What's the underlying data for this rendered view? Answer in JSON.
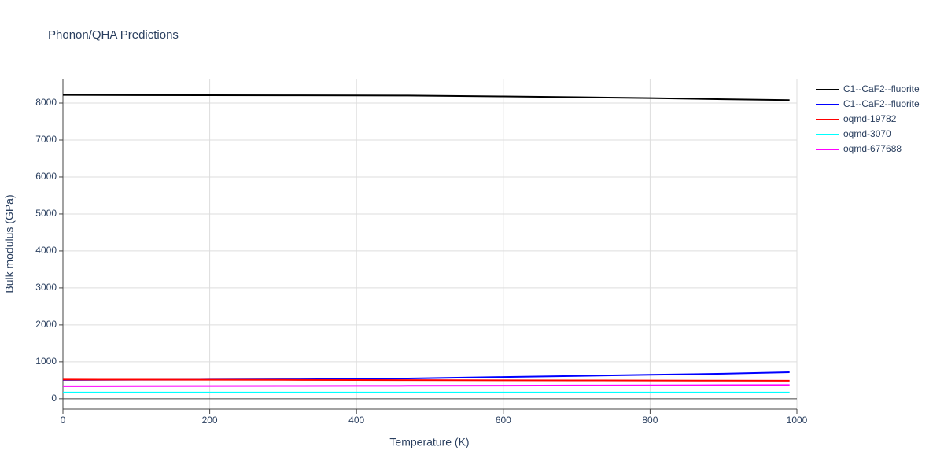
{
  "chart_data": {
    "type": "line",
    "title": "Phonon/QHA Predictions",
    "x_label": "Temperature (K)",
    "y_label": "Bulk modulus (GPa)",
    "x": [
      0,
      100,
      200,
      300,
      400,
      470,
      600,
      700,
      800,
      900,
      990
    ],
    "series": [
      {
        "name": "C1--CaF2--fluorite",
        "color": "#000000",
        "values": [
          8220,
          8215,
          8212,
          8210,
          8208,
          8205,
          8180,
          8160,
          8135,
          8105,
          8080
        ]
      },
      {
        "name": "C1--CaF2--fluorite",
        "color": "#0000ff",
        "values": [
          510,
          515,
          520,
          525,
          535,
          550,
          590,
          620,
          650,
          680,
          720
        ]
      },
      {
        "name": "oqmd-19782",
        "color": "#ff0000",
        "values": [
          520,
          518,
          515,
          512,
          508,
          505,
          500,
          497,
          494,
          492,
          490
        ]
      },
      {
        "name": "oqmd-3070",
        "color": "#00ffff",
        "values": [
          170,
          170,
          170,
          170,
          170,
          170,
          170,
          170,
          170,
          170,
          170
        ]
      },
      {
        "name": "oqmd-677688",
        "color": "#ff00ff",
        "values": [
          340,
          342,
          345,
          348,
          350,
          352,
          356,
          360,
          364,
          368,
          372
        ]
      }
    ],
    "xlim": [
      0,
      1000
    ],
    "xticks": [
      0,
      200,
      400,
      600,
      800,
      1000
    ],
    "ylim": [
      -280,
      8660
    ],
    "yticks": [
      0,
      1000,
      2000,
      3000,
      4000,
      5000,
      6000,
      7000,
      8000
    ],
    "grid": true,
    "legend": "right"
  }
}
